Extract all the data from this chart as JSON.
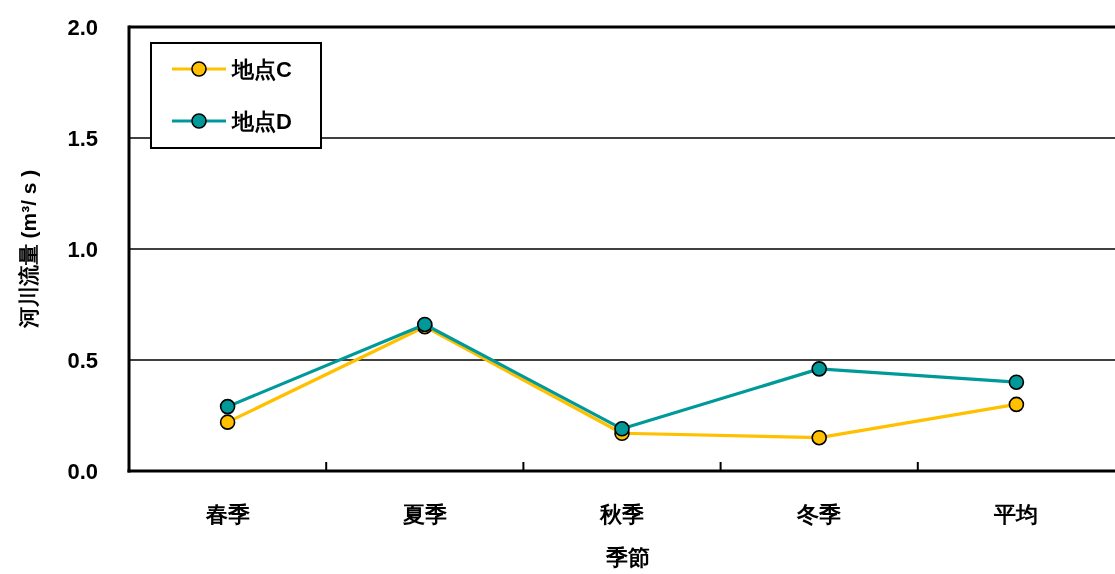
{
  "chart_data": {
    "type": "line",
    "xlabel": "季節",
    "ylabel": "河川流量 (m³/ s )",
    "categories": [
      "春季",
      "夏季",
      "秋季",
      "冬季",
      "平均"
    ],
    "series": [
      {
        "name": "地点C",
        "color": "#ffc000",
        "values": [
          0.22,
          0.65,
          0.17,
          0.15,
          0.3
        ]
      },
      {
        "name": "地点D",
        "color": "#009999",
        "values": [
          0.29,
          0.66,
          0.19,
          0.46,
          0.4
        ]
      }
    ],
    "ylim": [
      0,
      2
    ],
    "yticks": [
      {
        "value": 0,
        "label": "0.0"
      },
      0.5,
      {
        "value": 1,
        "label": "1.0"
      },
      1.5,
      {
        "value": 2,
        "label": "2.0"
      }
    ],
    "grid": "y",
    "legend": "top left",
    "marker": "circle",
    "line_style": "solid"
  }
}
